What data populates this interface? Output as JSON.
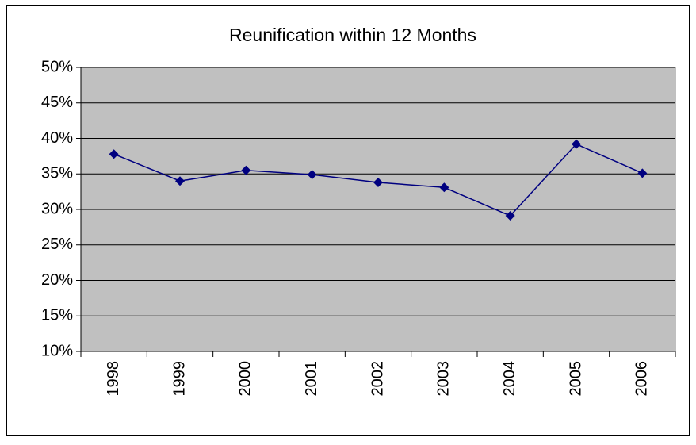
{
  "chart_data": {
    "type": "line",
    "title": "Reunification within 12 Months",
    "categories": [
      "1998",
      "1999",
      "2000",
      "2001",
      "2002",
      "2003",
      "2004",
      "2005",
      "2006"
    ],
    "series": [
      {
        "name": "Reunification within 12 Months",
        "color": "#000080",
        "values": [
          37.8,
          34.0,
          35.5,
          34.9,
          33.8,
          33.1,
          29.1,
          39.2,
          35.1
        ]
      }
    ],
    "ylim": [
      10,
      50
    ],
    "yticks": [
      {
        "value": 10,
        "label": "10%"
      },
      {
        "value": 15,
        "label": "15%"
      },
      {
        "value": 20,
        "label": "20%"
      },
      {
        "value": 25,
        "label": "25%"
      },
      {
        "value": 30,
        "label": "30%"
      },
      {
        "value": 35,
        "label": "35%"
      },
      {
        "value": 40,
        "label": "40%"
      },
      {
        "value": 45,
        "label": "45%"
      },
      {
        "value": 50,
        "label": "50%"
      }
    ],
    "grid": true
  }
}
